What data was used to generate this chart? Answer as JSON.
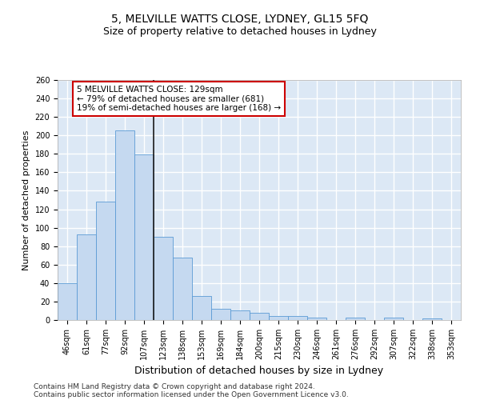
{
  "title": "5, MELVILLE WATTS CLOSE, LYDNEY, GL15 5FQ",
  "subtitle": "Size of property relative to detached houses in Lydney",
  "xlabel": "Distribution of detached houses by size in Lydney",
  "ylabel": "Number of detached properties",
  "categories": [
    "46sqm",
    "61sqm",
    "77sqm",
    "92sqm",
    "107sqm",
    "123sqm",
    "138sqm",
    "153sqm",
    "169sqm",
    "184sqm",
    "200sqm",
    "215sqm",
    "230sqm",
    "246sqm",
    "261sqm",
    "276sqm",
    "292sqm",
    "307sqm",
    "322sqm",
    "338sqm",
    "353sqm"
  ],
  "values": [
    40,
    93,
    128,
    205,
    179,
    90,
    68,
    26,
    12,
    10,
    8,
    4,
    4,
    3,
    0,
    3,
    0,
    3,
    0,
    2,
    0
  ],
  "bar_color": "#c5d9f0",
  "bar_edge_color": "#5b9bd5",
  "highlight_index": 5,
  "highlight_line_color": "#1a1a1a",
  "annotation_text": "5 MELVILLE WATTS CLOSE: 129sqm\n← 79% of detached houses are smaller (681)\n19% of semi-detached houses are larger (168) →",
  "annotation_box_color": "#ffffff",
  "annotation_box_edge_color": "#cc0000",
  "ylim": [
    0,
    260
  ],
  "yticks": [
    0,
    20,
    40,
    60,
    80,
    100,
    120,
    140,
    160,
    180,
    200,
    220,
    240,
    260
  ],
  "background_color": "#dce8f5",
  "grid_color": "#ffffff",
  "footer_line1": "Contains HM Land Registry data © Crown copyright and database right 2024.",
  "footer_line2": "Contains public sector information licensed under the Open Government Licence v3.0.",
  "title_fontsize": 10,
  "subtitle_fontsize": 9,
  "ylabel_fontsize": 8,
  "xlabel_fontsize": 9,
  "tick_fontsize": 7,
  "annotation_fontsize": 7.5,
  "footer_fontsize": 6.5
}
